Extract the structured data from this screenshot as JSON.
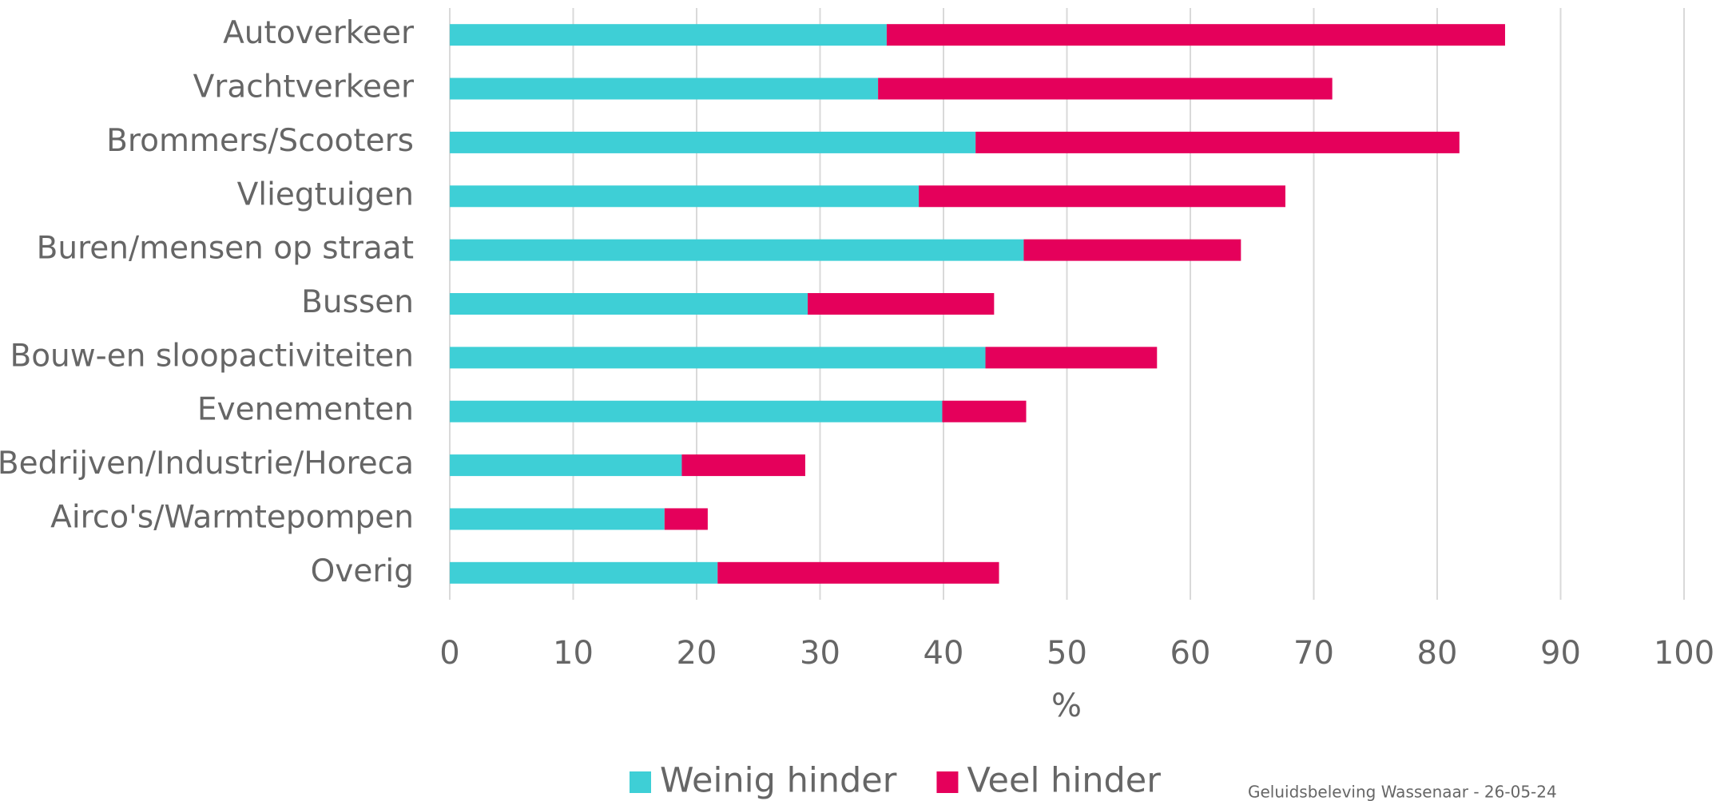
{
  "chart_data": {
    "type": "bar",
    "orientation": "horizontal",
    "stacked": true,
    "categories": [
      "Autoverkeer",
      "Vrachtverkeer",
      "Brommers/Scooters",
      "Vliegtuigen",
      "Buren/mensen op straat",
      "Bussen",
      "Bouw-en sloopactiviteiten",
      "Evenementen",
      "Bedrijven/Industrie/Horeca",
      "Airco's/Warmtepompen",
      "Overig"
    ],
    "series": [
      {
        "name": "Weinig hinder",
        "color": "#3ecfd6",
        "values": [
          35.4,
          34.7,
          42.6,
          38.0,
          46.5,
          29.0,
          43.4,
          39.9,
          18.8,
          17.4,
          21.7
        ]
      },
      {
        "name": "Veel hinder",
        "color": "#e5005b",
        "values": [
          50.1,
          36.8,
          39.2,
          29.7,
          17.6,
          15.1,
          13.9,
          6.8,
          10.0,
          3.5,
          22.8
        ]
      }
    ],
    "xlabel": "%",
    "xlim": [
      0,
      100
    ],
    "xticks": [
      0,
      10,
      20,
      30,
      40,
      50,
      60,
      70,
      80,
      90,
      100
    ],
    "grid": true,
    "legend": "bottom",
    "footer": "Geluidsbeleving Wassenaar  -  26-05-24"
  }
}
